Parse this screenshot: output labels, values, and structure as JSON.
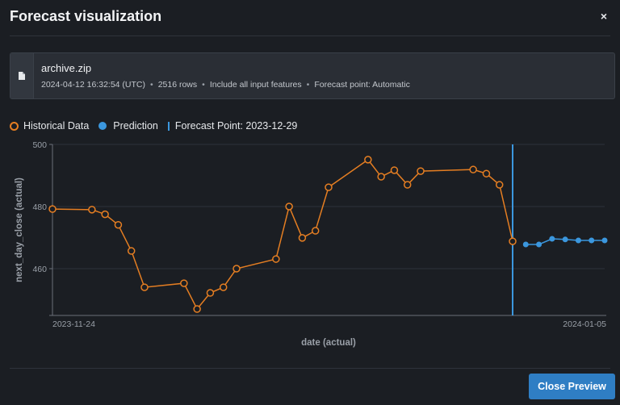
{
  "dialog": {
    "title": "Forecast visualization",
    "close_icon": "×"
  },
  "dataset_card": {
    "icon": "file-icon",
    "name": "archive.zip",
    "meta": {
      "timestamp": "2024-04-12 16:32:54 (UTC)",
      "rows": "2516 rows",
      "features": "Include all input features",
      "forecast_point": "Forecast point: Automatic",
      "separator": "•"
    }
  },
  "legend": {
    "historical": "Historical Data",
    "prediction": "Prediction",
    "forecast_point": "Forecast Point: 2023-12-29"
  },
  "colors": {
    "historical": "#e57e22",
    "prediction": "#3b97de",
    "forecast_line": "#3b97de",
    "button": "#2f7ec4",
    "background": "#1b1e23"
  },
  "footer": {
    "close_preview_label": "Close Preview"
  },
  "chart_data": {
    "type": "line",
    "title": "",
    "xlabel": "date (actual)",
    "ylabel": "next_day_close (actual)",
    "ylim": [
      445,
      500
    ],
    "yticks": [
      460,
      480,
      500
    ],
    "x_tick_labels": [
      "2023-11-24",
      "2024-01-05"
    ],
    "grid": true,
    "legend_position": "top-left",
    "forecast_point": "2023-12-29",
    "series": [
      {
        "name": "Historical Data",
        "style": "line+hollow-markers",
        "x_index": [
          0,
          3,
          4,
          5,
          6,
          7,
          10,
          11,
          12,
          13,
          14,
          17,
          18,
          19,
          20,
          21,
          24,
          25,
          26,
          27,
          28,
          32,
          33,
          34,
          35
        ],
        "values": [
          479.2,
          479.0,
          477.5,
          474.1,
          465.7,
          454.0,
          455.3,
          447.0,
          452.2,
          454.0,
          460.0,
          463.1,
          480.0,
          469.9,
          472.2,
          486.2,
          495.1,
          489.6,
          491.7,
          487.0,
          491.4,
          491.9,
          490.6,
          487.0,
          468.8
        ]
      },
      {
        "name": "Prediction",
        "style": "line+filled-markers",
        "x_index": [
          36,
          37,
          38,
          39,
          40,
          41,
          42
        ],
        "values": [
          467.8,
          467.8,
          469.6,
          469.4,
          469.1,
          469.1,
          469.1
        ]
      }
    ]
  }
}
